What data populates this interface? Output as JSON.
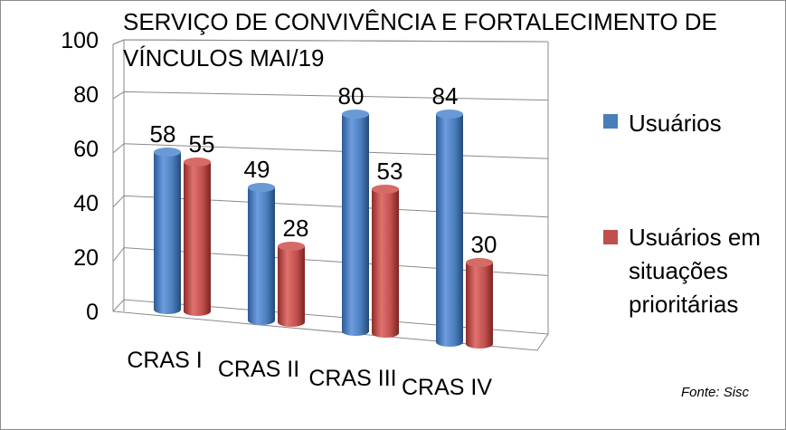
{
  "chart_data": {
    "type": "bar",
    "style": "3d-cylinder",
    "title_lines": [
      "SERVIÇO DE CONVIVÊNCIA E FORTALECIMENTO DE",
      "VÍNCULOS MAI/19"
    ],
    "categories": [
      "CRAS I",
      "CRAS II",
      "CRAS III",
      "CRAS IV"
    ],
    "series": [
      {
        "name": "Usuários",
        "values": [
          58,
          49,
          80,
          84
        ],
        "color": "#4a7ebb"
      },
      {
        "name_lines": [
          "Usuários em",
          "situações",
          "prioritárias"
        ],
        "values": [
          55,
          28,
          53,
          30
        ],
        "color": "#c0504d"
      }
    ],
    "y_ticks": [
      "0",
      "20",
      "40",
      "60",
      "80",
      "100"
    ],
    "ylim": [
      0,
      100
    ],
    "grid": true,
    "legend_position": "right",
    "source": "Fonte: Sisc"
  }
}
